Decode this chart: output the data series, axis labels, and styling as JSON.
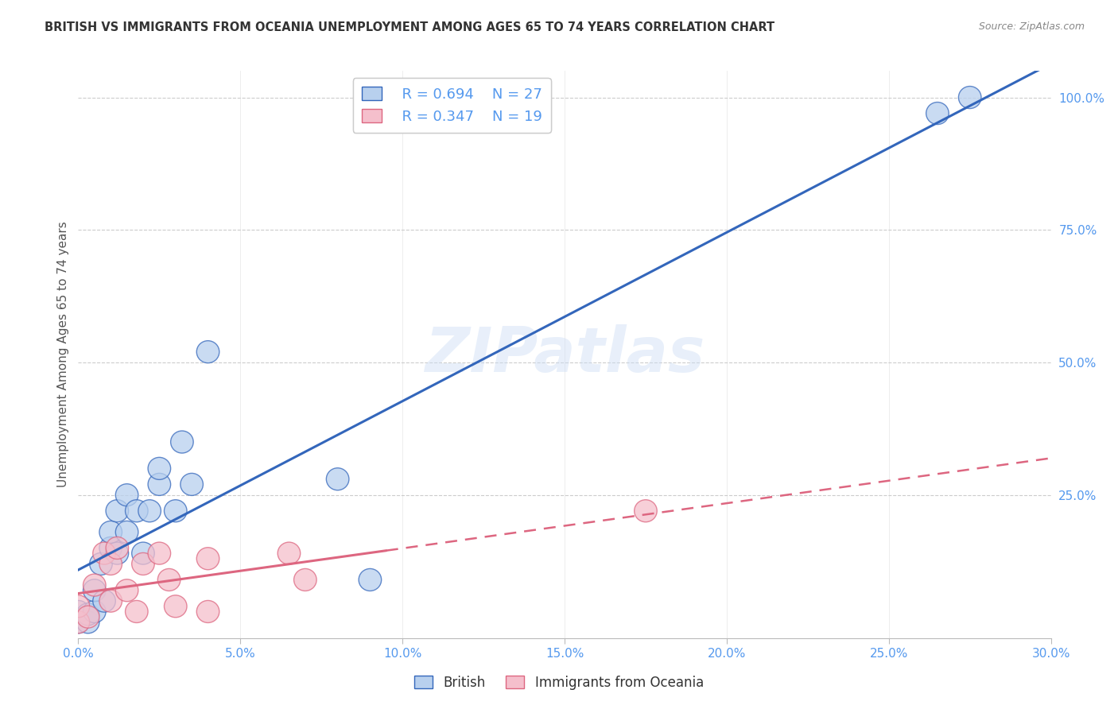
{
  "title": "BRITISH VS IMMIGRANTS FROM OCEANIA UNEMPLOYMENT AMONG AGES 65 TO 74 YEARS CORRELATION CHART",
  "source": "Source: ZipAtlas.com",
  "ylabel": "Unemployment Among Ages 65 to 74 years",
  "xlim": [
    0.0,
    0.3
  ],
  "ylim": [
    -0.02,
    1.05
  ],
  "legend_r1": "R = 0.694",
  "legend_n1": "N = 27",
  "legend_r2": "R = 0.347",
  "legend_n2": "N = 19",
  "legend_label1": "British",
  "legend_label2": "Immigrants from Oceania",
  "watermark": "ZIPatlas",
  "british_scatter_x": [
    0.0,
    0.0,
    0.003,
    0.003,
    0.005,
    0.005,
    0.007,
    0.008,
    0.01,
    0.01,
    0.012,
    0.012,
    0.015,
    0.015,
    0.018,
    0.02,
    0.022,
    0.025,
    0.025,
    0.03,
    0.032,
    0.035,
    0.04,
    0.08,
    0.09,
    0.265,
    0.275
  ],
  "british_scatter_y": [
    0.01,
    0.03,
    0.01,
    0.025,
    0.03,
    0.07,
    0.12,
    0.05,
    0.15,
    0.18,
    0.14,
    0.22,
    0.18,
    0.25,
    0.22,
    0.14,
    0.22,
    0.27,
    0.3,
    0.22,
    0.35,
    0.27,
    0.52,
    0.28,
    0.09,
    0.97,
    1.0
  ],
  "oceania_scatter_x": [
    0.0,
    0.0,
    0.003,
    0.005,
    0.008,
    0.01,
    0.01,
    0.012,
    0.015,
    0.018,
    0.02,
    0.025,
    0.028,
    0.03,
    0.04,
    0.04,
    0.065,
    0.07,
    0.175
  ],
  "oceania_scatter_y": [
    0.01,
    0.04,
    0.02,
    0.08,
    0.14,
    0.05,
    0.12,
    0.15,
    0.07,
    0.03,
    0.12,
    0.14,
    0.09,
    0.04,
    0.03,
    0.13,
    0.14,
    0.09,
    0.22
  ],
  "british_color": "#b8d0ee",
  "oceania_color": "#f5bfcc",
  "british_line_color": "#3366bb",
  "oceania_line_color": "#dd6680",
  "grid_color": "#cccccc",
  "background_color": "#ffffff",
  "title_color": "#333333",
  "axis_color": "#5599ee",
  "british_line_slope": 3.55,
  "british_line_intercept": -0.02,
  "oceania_line_slope": 0.92,
  "oceania_line_intercept": 0.03
}
